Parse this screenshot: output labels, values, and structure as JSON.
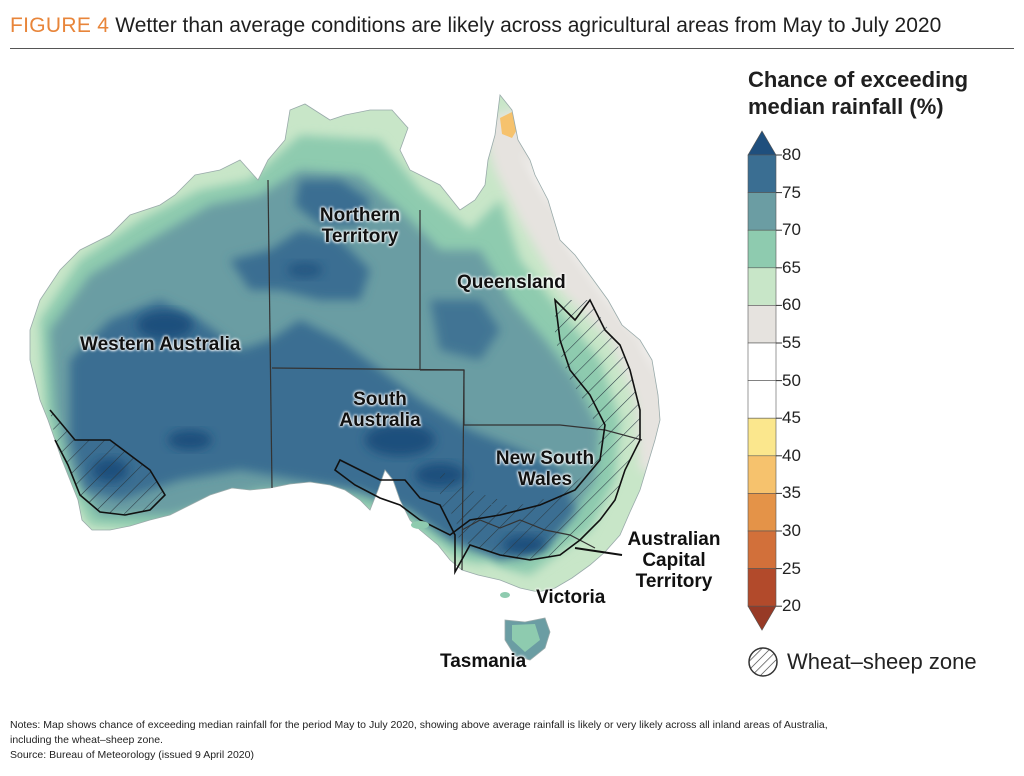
{
  "header": {
    "figure_label": "FIGURE 4",
    "title": "Wetter than average conditions are likely across agricultural areas from May to July 2020"
  },
  "map": {
    "states": [
      {
        "id": "wa",
        "name": "Western Australia"
      },
      {
        "id": "nt",
        "name": "Northern Territory"
      },
      {
        "id": "qld",
        "name": "Queensland"
      },
      {
        "id": "sa",
        "name": "South Australia"
      },
      {
        "id": "nsw",
        "name": "New South Wales"
      },
      {
        "id": "act",
        "name": "Australian Capital Territory"
      },
      {
        "id": "vic",
        "name": "Victoria"
      },
      {
        "id": "tas",
        "name": "Tasmania"
      }
    ],
    "colors": {
      "very_dark_blue": "#1f4f7d",
      "dark_blue": "#3a6e92",
      "teal": "#6b9da3",
      "mint": "#8ecbaf",
      "light_green": "#c8e6c8",
      "grey": "#e6e3df",
      "white": "#ffffff",
      "yellow": "#fbe78d",
      "light_orange": "#f6c26d",
      "orange": "#e49348",
      "dark_orange": "#d2703a",
      "red_brown": "#b24a2b",
      "dark_red": "#973a26"
    }
  },
  "legend": {
    "title_line1": "Chance of exceeding",
    "title_line2": "median rainfall (%)",
    "ticks": [
      "80",
      "75",
      "70",
      "65",
      "60",
      "55",
      "50",
      "45",
      "40",
      "35",
      "30",
      "25",
      "20"
    ],
    "bands": [
      {
        "range": "> 80",
        "color": "#1f4f7d"
      },
      {
        "range": "75-80",
        "color": "#3a6e92"
      },
      {
        "range": "70-75",
        "color": "#6b9da3"
      },
      {
        "range": "65-70",
        "color": "#8ecbaf"
      },
      {
        "range": "60-65",
        "color": "#c8e6c8"
      },
      {
        "range": "55-60",
        "color": "#e6e3df"
      },
      {
        "range": "50-55",
        "color": "#ffffff"
      },
      {
        "range": "45-50",
        "color": "#ffffff"
      },
      {
        "range": "40-45",
        "color": "#fbe78d"
      },
      {
        "range": "35-40",
        "color": "#f6c26d"
      },
      {
        "range": "30-35",
        "color": "#e49348"
      },
      {
        "range": "25-30",
        "color": "#d2703a"
      },
      {
        "range": "20-25",
        "color": "#b24a2b"
      },
      {
        "range": "< 20",
        "color": "#973a26"
      }
    ],
    "hatch_label": "Wheat–sheep zone"
  },
  "notes": {
    "line1": "Notes: Map shows chance of exceeding median rainfall for the period May to July 2020, showing above average rainfall is likely or very likely across all inland areas of Australia,",
    "line2": "including the wheat–sheep zone.",
    "source": "Source: Bureau of Meteorology (issued 9 April 2020)"
  }
}
